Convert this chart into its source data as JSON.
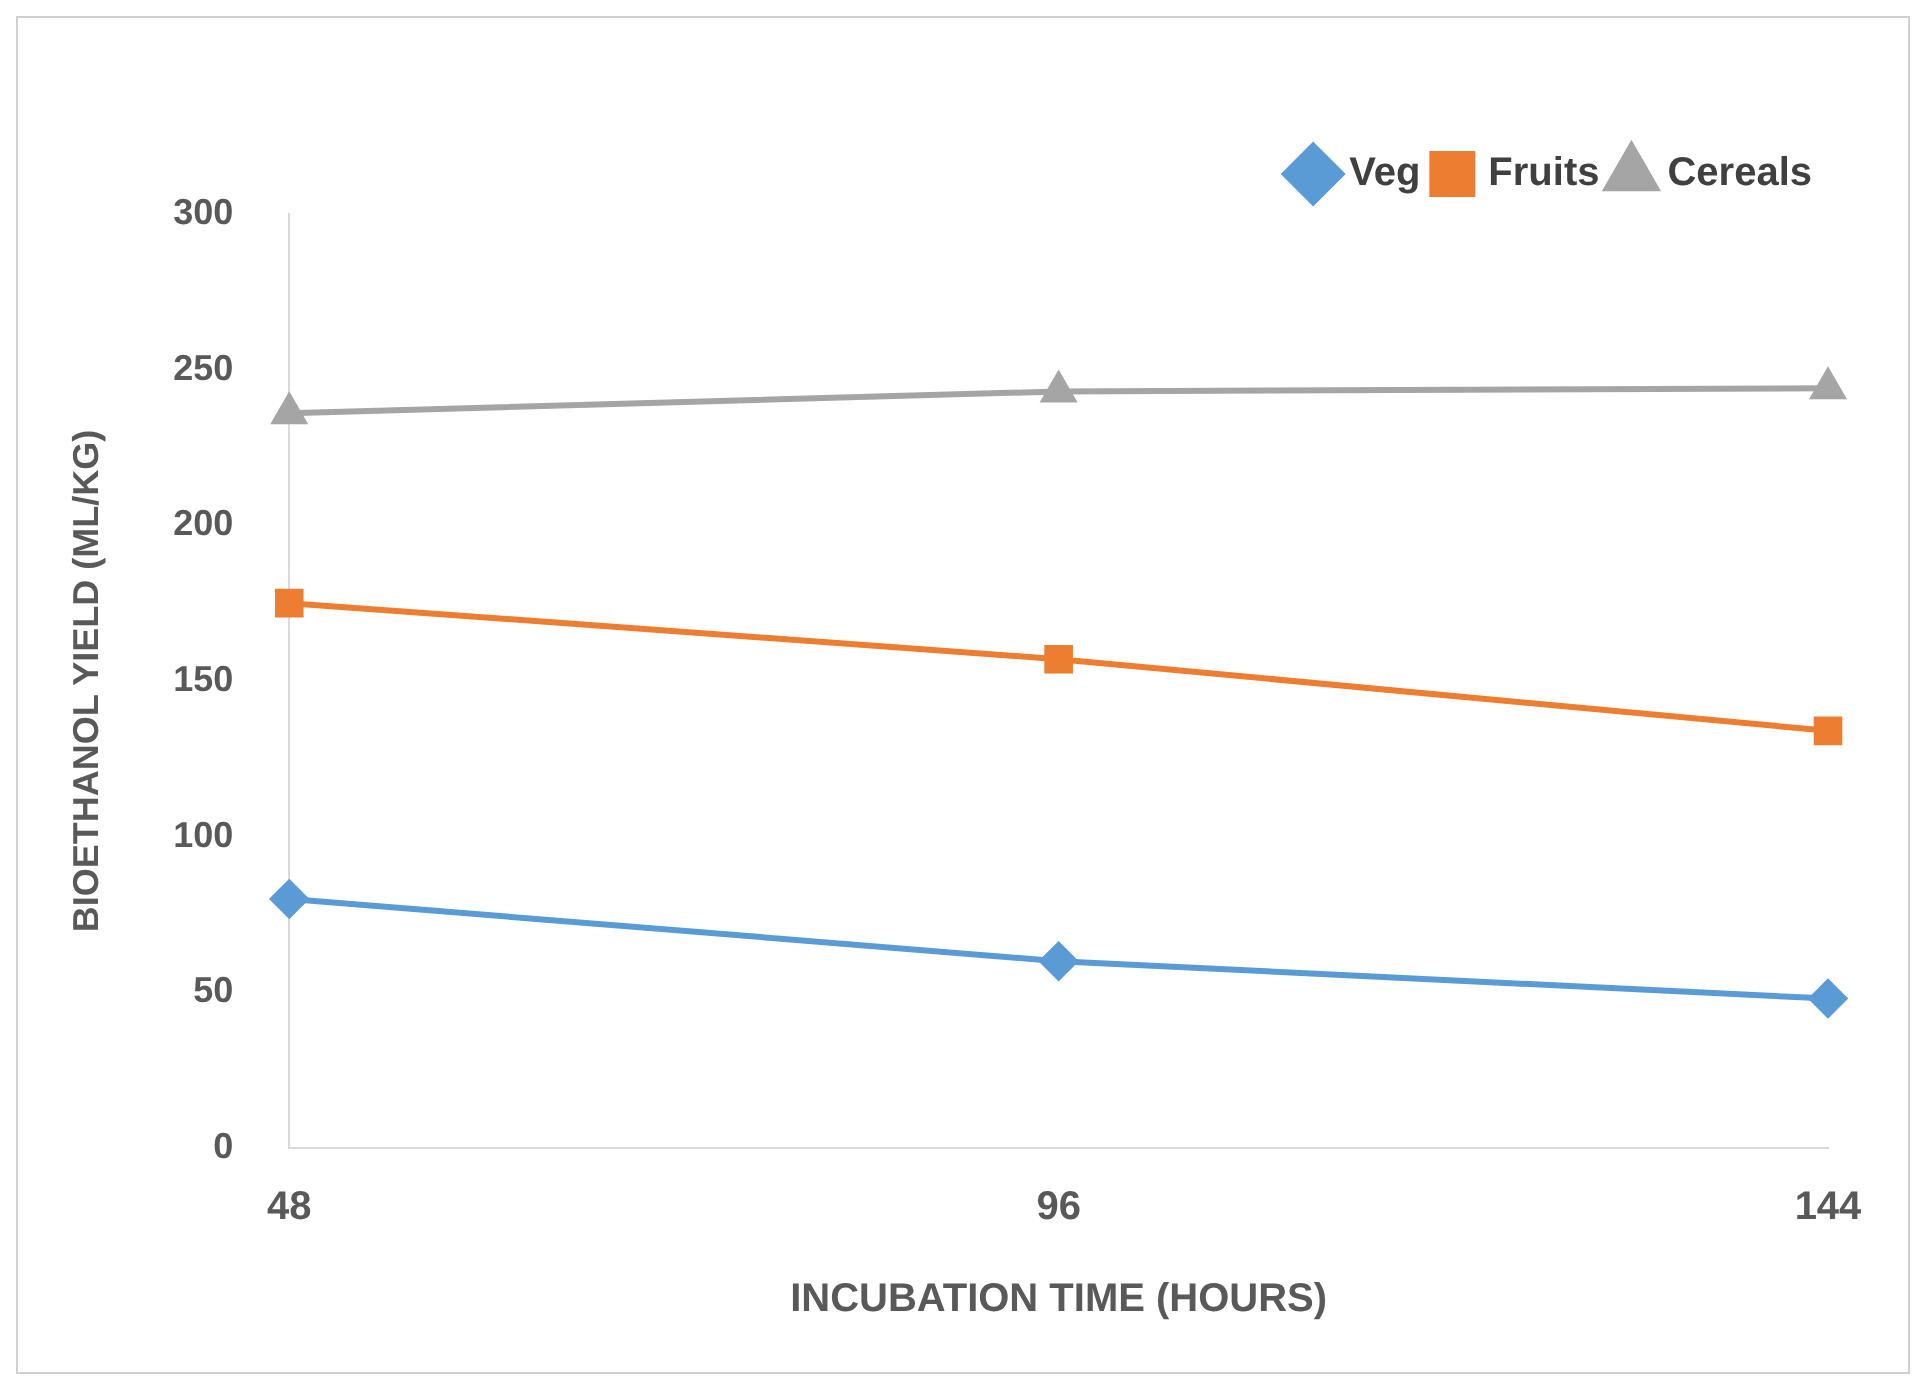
{
  "chart_data": {
    "type": "line",
    "xlabel": "INCUBATION TIME (HOURS)",
    "ylabel": "BIOETHANOL YIELD (ML/KG)",
    "categories": [
      "48",
      "96",
      "144"
    ],
    "series": [
      {
        "name": "Veg",
        "color": "#5b9bd5",
        "marker": "diamond",
        "values": [
          80,
          60,
          48
        ]
      },
      {
        "name": "Fruits",
        "color": "#ed7d31",
        "marker": "square",
        "values": [
          175,
          157,
          134
        ]
      },
      {
        "name": "Cereals",
        "color": "#a5a5a5",
        "marker": "triangle",
        "values": [
          236,
          243,
          244
        ]
      }
    ],
    "ylim": [
      0,
      300
    ],
    "yticks": [
      0,
      50,
      100,
      150,
      200,
      250,
      300
    ],
    "grid": false,
    "legend": "top right",
    "line_style": "solid"
  }
}
